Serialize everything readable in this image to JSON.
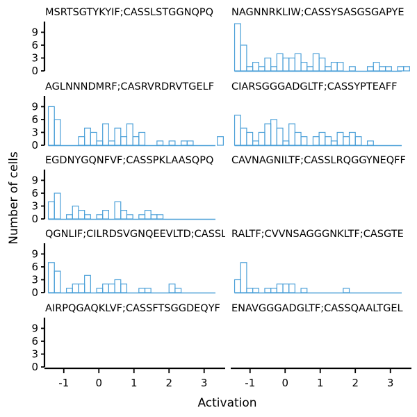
{
  "chart_data": {
    "type": "bar",
    "xlabel": "Activation",
    "ylabel": "Number of cells",
    "xlim": [
      -1.55,
      3.6
    ],
    "ylim": [
      0,
      11.5
    ],
    "xticks": [
      -1,
      0,
      1,
      2,
      3
    ],
    "xtick_labels": [
      "-1",
      "0",
      "1",
      "2",
      "3"
    ],
    "yticks": [
      0,
      3,
      6,
      9
    ],
    "ytick_labels": [
      "0",
      "3",
      "6",
      "9"
    ],
    "bin_start": -1.44,
    "bin_width": 0.172,
    "grid": false,
    "bar_style": "outline",
    "color": "#4a9fd8",
    "panels": [
      {
        "title": "MSRTSGTYKYIF;CASSLSTGGNQPQ",
        "counts": []
      },
      {
        "title": "NAGNNRKLIW;CASSYSASGSGAPYE",
        "counts": [
          11,
          6,
          1,
          2,
          1,
          3,
          1,
          4,
          3,
          3,
          4,
          2,
          1,
          4,
          3,
          1,
          2,
          2,
          0,
          1,
          0,
          0,
          1,
          2,
          1,
          1,
          0,
          1,
          1
        ]
      },
      {
        "title": "AGLNNNDMRF;CASRVRDRVTGELF",
        "counts": [
          9,
          6,
          0,
          0,
          0,
          2,
          4,
          3,
          1,
          5,
          1,
          4,
          2,
          5,
          2,
          3,
          0,
          0,
          1,
          0,
          1,
          0,
          1,
          1,
          0,
          0,
          0,
          0,
          2
        ]
      },
      {
        "title": "CIARSGGGADGLTF;CASSYPTEAFF",
        "counts": [
          7,
          4,
          3,
          1,
          3,
          5,
          6,
          4,
          1,
          5,
          3,
          2,
          0,
          2,
          3,
          2,
          1,
          3,
          2,
          3,
          2,
          0,
          1
        ]
      },
      {
        "title": "EGDNYGQNFVF;CASSPKLAASQPQ",
        "counts": [
          4,
          6,
          0,
          1,
          3,
          2,
          1,
          0,
          1,
          2,
          0,
          4,
          2,
          1,
          0,
          1,
          2,
          1,
          1
        ]
      },
      {
        "title": "CAVNAGNILTF;CASSLRQGGYNEQFF",
        "counts": []
      },
      {
        "title": "QGNLIF;CILRDSVGNQEEVLTD;CASSL",
        "counts": [
          7,
          5,
          0,
          1,
          2,
          2,
          4,
          0,
          1,
          2,
          2,
          3,
          2,
          0,
          0,
          1,
          1,
          0,
          0,
          0,
          2,
          1,
          0,
          0,
          0,
          0,
          0,
          0,
          0,
          0,
          0,
          0,
          0,
          0,
          0,
          0,
          1
        ]
      },
      {
        "title": "RALTF;CVVNSAGGGNKLTF;CASGTE",
        "counts": [
          3,
          7,
          1,
          1,
          0,
          1,
          1,
          2,
          2,
          2,
          0,
          1,
          0,
          0,
          0,
          0,
          0,
          0,
          1
        ]
      },
      {
        "title": "AIRPQGAQKLVF;CASSFTSGGDEQYF",
        "counts": []
      },
      {
        "title": "ENAVGGGADGLTF;CASSQAALTGEL",
        "counts": []
      }
    ]
  }
}
